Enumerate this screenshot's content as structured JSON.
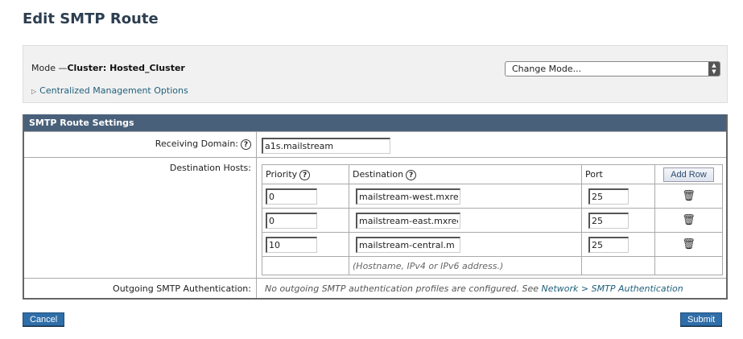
{
  "page_title": "Edit SMTP Route",
  "mode": {
    "label": "Mode —",
    "value": "Cluster: Hosted_Cluster",
    "change_mode": "Change Mode...",
    "centralized": "Centralized Management Options"
  },
  "settings": {
    "header": "SMTP Route Settings",
    "receiving_domain_label": "Receiving Domain:",
    "receiving_domain_value": "a1s.mailstream",
    "destination_hosts_label": "Destination Hosts:",
    "columns": {
      "priority": "Priority",
      "destination": "Destination",
      "port": "Port",
      "add_row": "Add Row"
    },
    "rows": [
      {
        "priority": "0",
        "destination": "mailstream-west.mxre",
        "port": "25"
      },
      {
        "priority": "0",
        "destination": "mailstream-east.mxrec",
        "port": "25"
      },
      {
        "priority": "10",
        "destination": "mailstream-central.m",
        "port": "25"
      }
    ],
    "hint": "(Hostname, IPv4 or IPv6 address.)",
    "outgoing_label": "Outgoing SMTP Authentication:",
    "outgoing_text": "No outgoing SMTP authentication profiles are configured. See",
    "outgoing_link": "Network > SMTP Authentication"
  },
  "buttons": {
    "cancel": "Cancel",
    "submit": "Submit"
  }
}
